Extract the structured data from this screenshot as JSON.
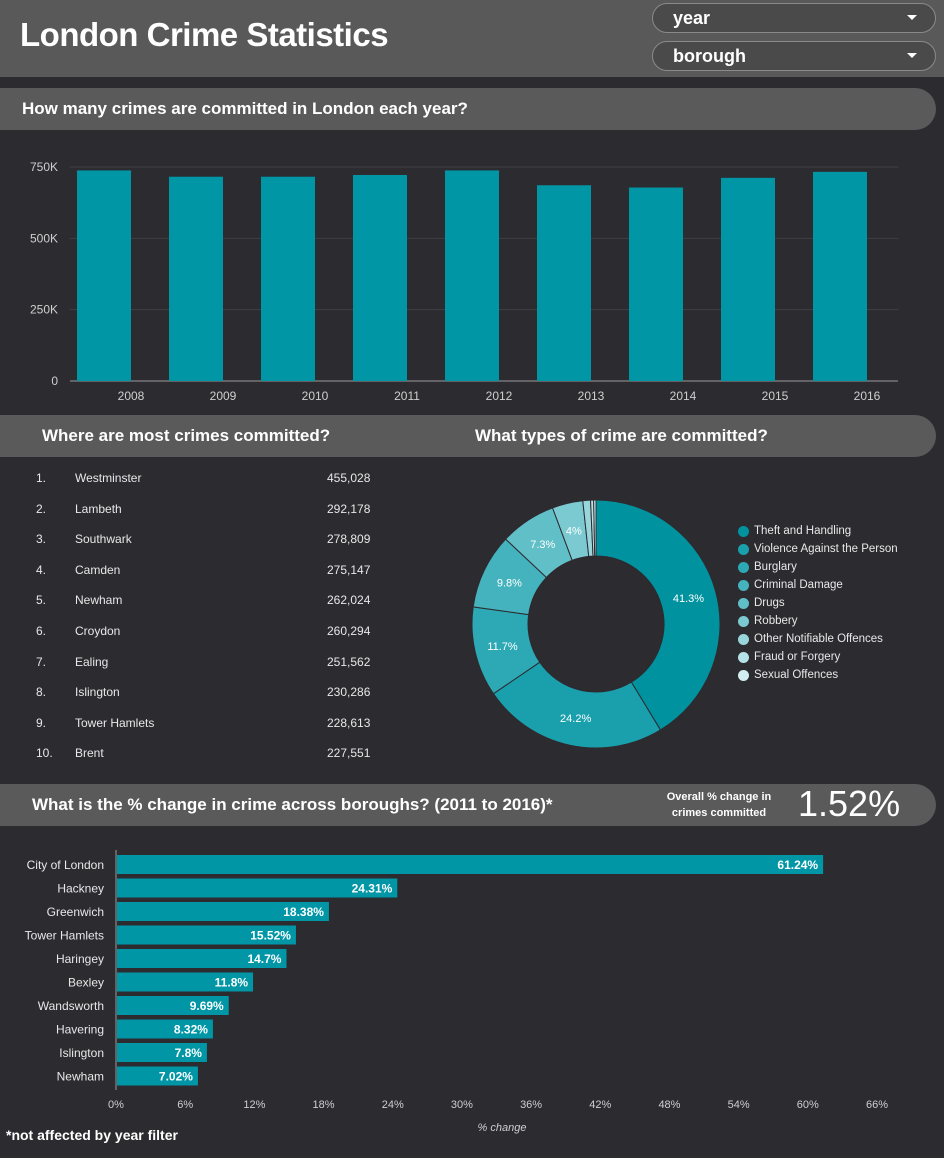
{
  "header": {
    "title": "London Crime Statistics",
    "filters": [
      {
        "label": "year"
      },
      {
        "label": "borough"
      }
    ]
  },
  "sections": {
    "yearly_title": "How many crimes are committed in London each year?",
    "borough_title": "Where are most crimes committed?",
    "types_title": "What types of crime are committed?",
    "change_title": "What is the % change in crime across boroughs? (2011 to 2016)*"
  },
  "overall": {
    "label": "Overall % change in crimes committed",
    "value": "1.52%"
  },
  "footnote": "*not affected by year filter",
  "colors": {
    "bar": "#0096a6",
    "grid": "#3f3f45",
    "background": "#2c2b30",
    "banner": "#5a5a5a"
  },
  "top_boroughs": [
    {
      "rank": "1.",
      "name": "Westminster",
      "value": "455,028"
    },
    {
      "rank": "2.",
      "name": "Lambeth",
      "value": "292,178"
    },
    {
      "rank": "3.",
      "name": "Southwark",
      "value": "278,809"
    },
    {
      "rank": "4.",
      "name": "Camden",
      "value": "275,147"
    },
    {
      "rank": "5.",
      "name": "Newham",
      "value": "262,024"
    },
    {
      "rank": "6.",
      "name": "Croydon",
      "value": "260,294"
    },
    {
      "rank": "7.",
      "name": "Ealing",
      "value": "251,562"
    },
    {
      "rank": "8.",
      "name": "Islington",
      "value": "230,286"
    },
    {
      "rank": "9.",
      "name": "Tower Hamlets",
      "value": "228,613"
    },
    {
      "rank": "10.",
      "name": "Brent",
      "value": "227,551"
    }
  ],
  "chart_data": [
    {
      "type": "bar",
      "categories": [
        "2008",
        "2009",
        "2010",
        "2011",
        "2012",
        "2013",
        "2014",
        "2015",
        "2016"
      ],
      "values": [
        738000,
        716000,
        716000,
        722000,
        738000,
        686000,
        678000,
        712000,
        733000
      ],
      "ylim": [
        0,
        750000
      ],
      "yticks": [
        "0",
        "250K",
        "500K",
        "750K"
      ],
      "ytick_values": [
        0,
        250000,
        500000,
        750000
      ],
      "grid": true
    },
    {
      "type": "pie",
      "hole": true,
      "slices": [
        {
          "label": "Theft and Handling",
          "value": 41.3,
          "text": "41.3%",
          "color": "#00939f"
        },
        {
          "label": "Violence Against the Person",
          "value": 24.2,
          "text": "24.2%",
          "color": "#1aa0ad"
        },
        {
          "label": "Burglary",
          "value": 11.7,
          "text": "11.7%",
          "color": "#2da9b5"
        },
        {
          "label": "Criminal Damage",
          "value": 9.8,
          "text": "9.8%",
          "color": "#45b3bd"
        },
        {
          "label": "Drugs",
          "value": 7.3,
          "text": "7.3%",
          "color": "#60bfc7"
        },
        {
          "label": "Robbery",
          "value": 4.0,
          "text": "4%",
          "color": "#7ccad1"
        },
        {
          "label": "Other Notifiable Offences",
          "value": 1.0,
          "text": "",
          "color": "#98d6db"
        },
        {
          "label": "Fraud or Forgery",
          "value": 0.4,
          "text": "",
          "color": "#b5e2e6"
        },
        {
          "label": "Sexual Offences",
          "value": 0.3,
          "text": "",
          "color": "#d2eef0"
        }
      ],
      "legend": "right"
    },
    {
      "type": "bar",
      "orientation": "horizontal",
      "categories": [
        "City of London",
        "Hackney",
        "Greenwich",
        "Tower Hamlets",
        "Haringey",
        "Bexley",
        "Wandsworth",
        "Havering",
        "Islington",
        "Newham"
      ],
      "values": [
        61.24,
        24.31,
        18.38,
        15.52,
        14.7,
        11.8,
        9.69,
        8.32,
        7.8,
        7.02
      ],
      "value_labels": [
        "61.24%",
        "24.31%",
        "18.38%",
        "15.52%",
        "14.7%",
        "11.8%",
        "9.69%",
        "8.32%",
        "7.8%",
        "7.02%"
      ],
      "xlim": [
        0,
        66
      ],
      "xticks": [
        "0%",
        "6%",
        "12%",
        "18%",
        "24%",
        "30%",
        "36%",
        "42%",
        "48%",
        "54%",
        "60%",
        "66%"
      ],
      "xtick_values": [
        0,
        6,
        12,
        18,
        24,
        30,
        36,
        42,
        48,
        54,
        60,
        66
      ],
      "xlabel": "% change"
    }
  ]
}
